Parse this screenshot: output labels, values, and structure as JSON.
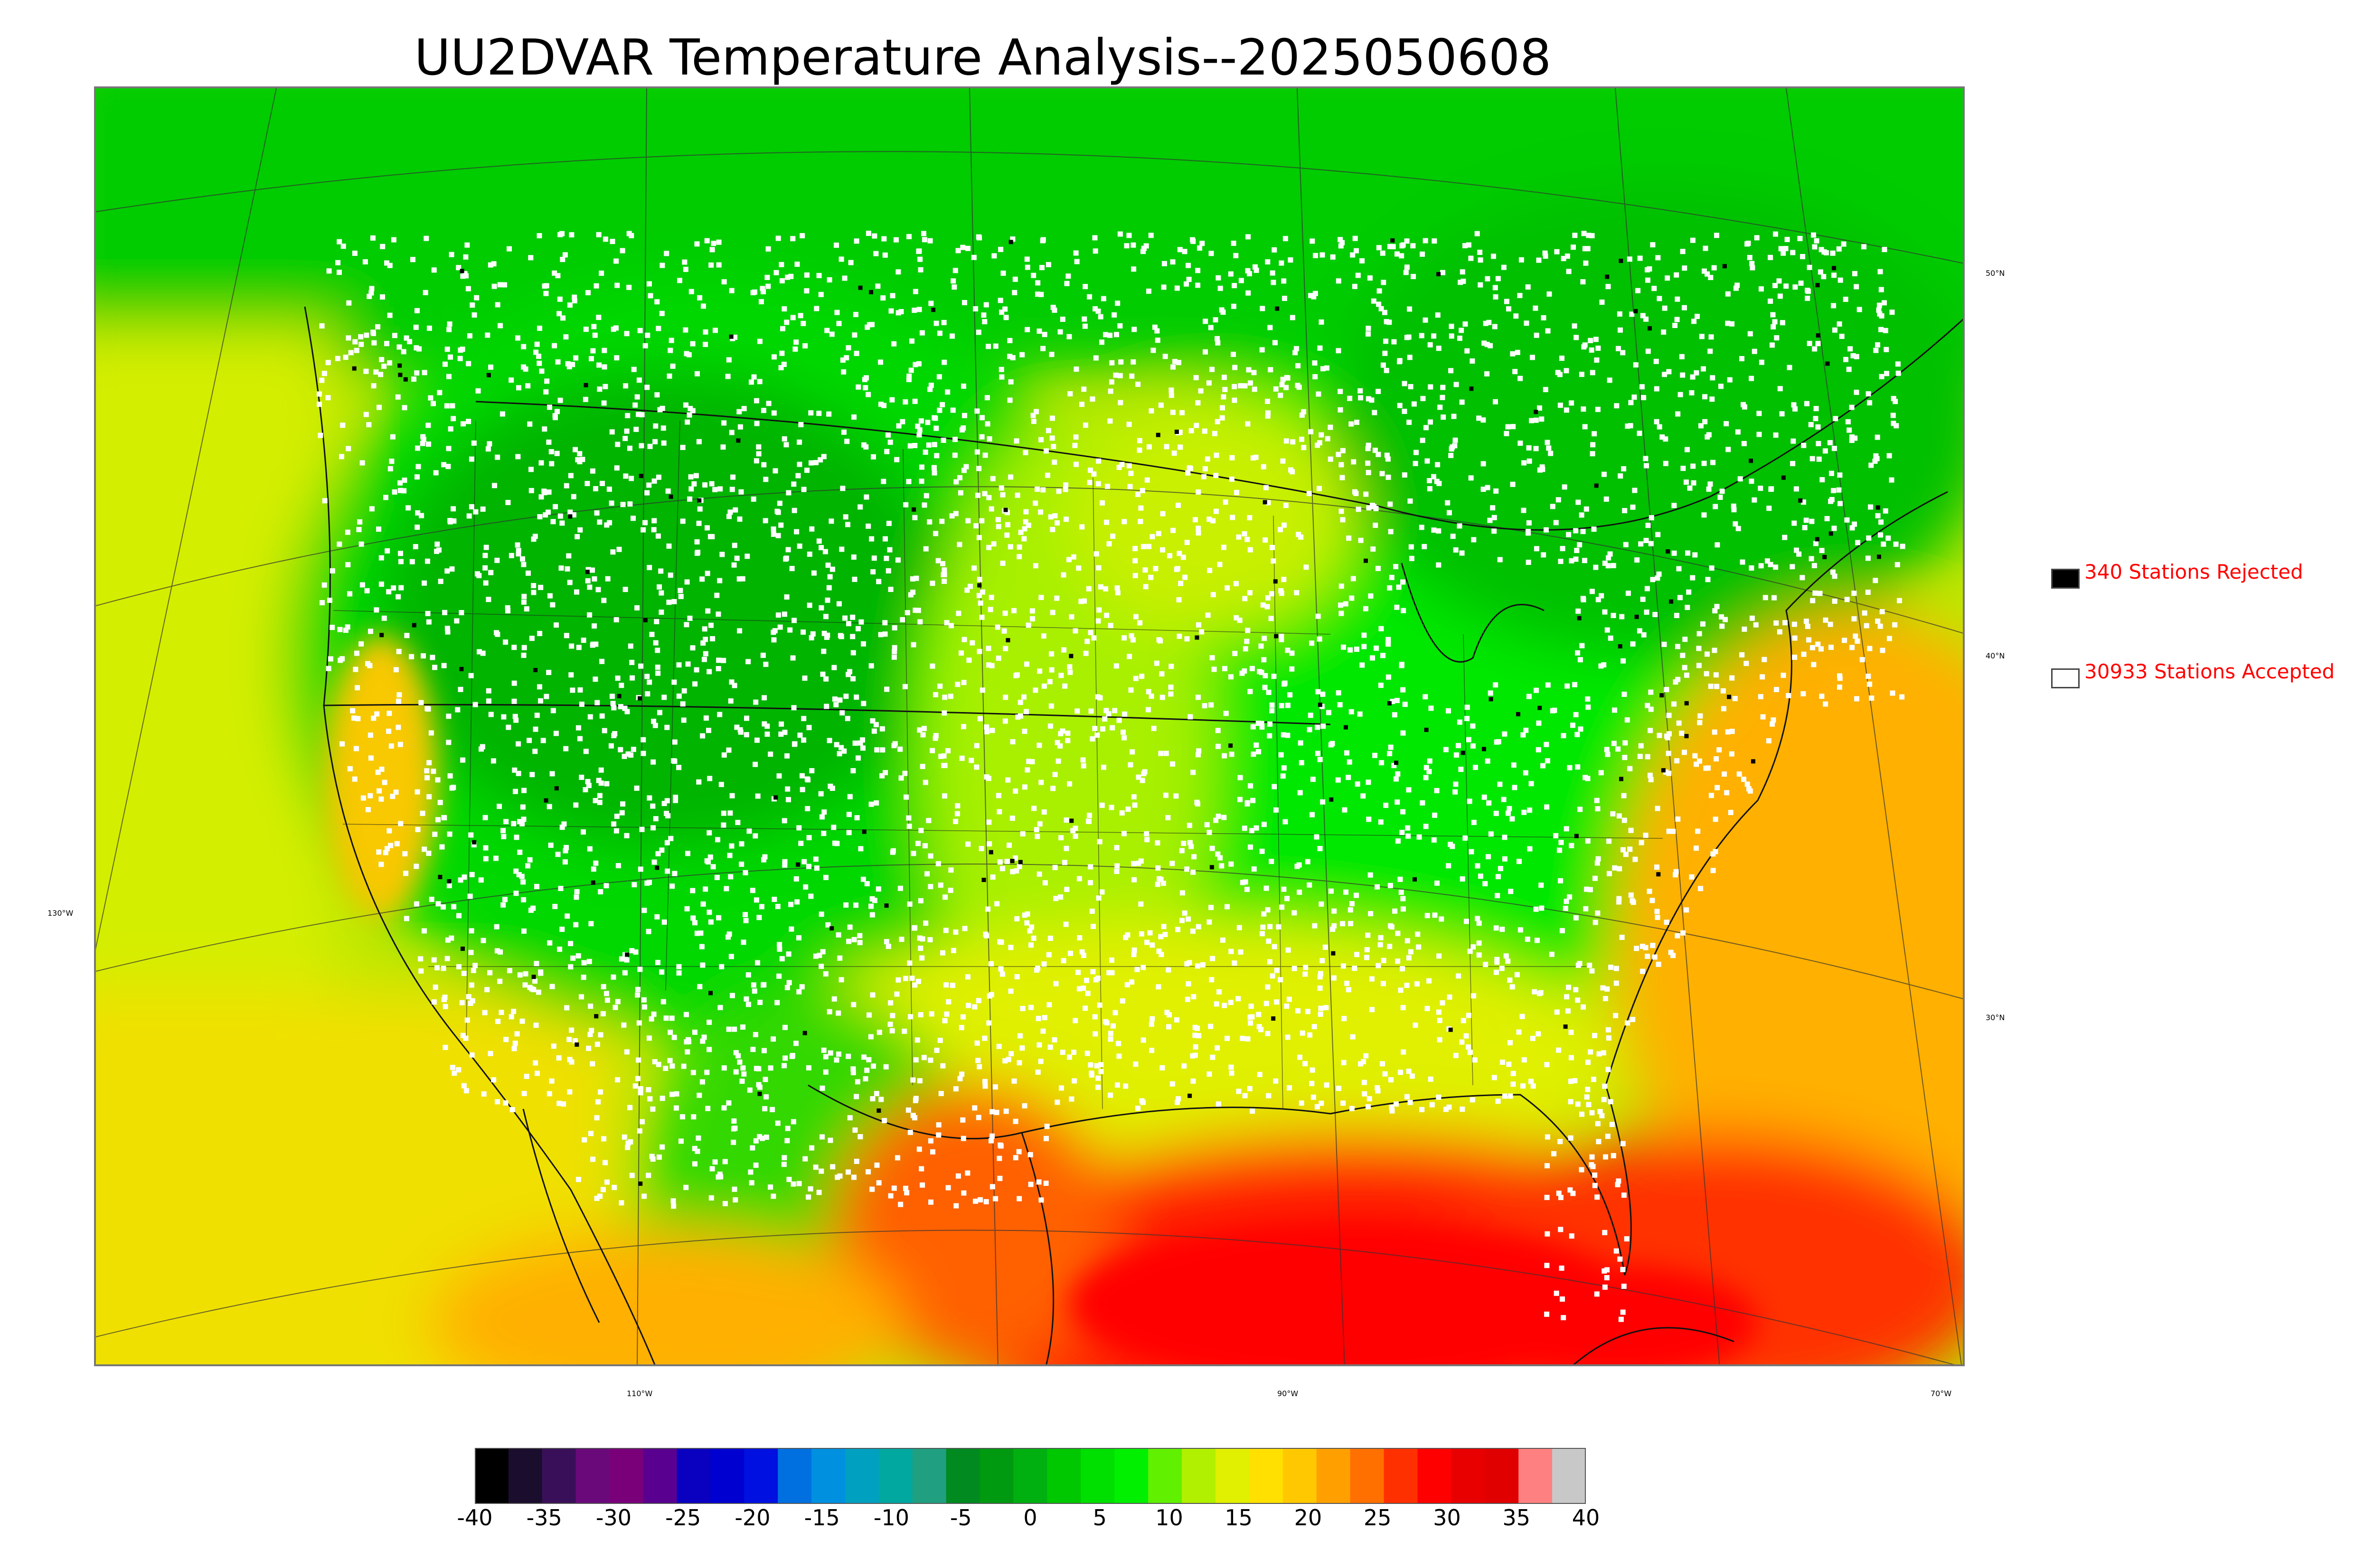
{
  "title": "UU2DVAR Temperature Analysis--2025050608",
  "grid_labels": {
    "lat_50": "50°N",
    "lat_40": "40°N",
    "lat_30": "30°N",
    "lon_130": "130°W",
    "lon_110": "110°W",
    "lon_90": "90°W",
    "lon_70": "70°W"
  },
  "legend": {
    "rejected": {
      "label": "340 Stations Rejected",
      "color": "#000000"
    },
    "accepted": {
      "label": "30933 Stations Accepted",
      "color": "#ffffff"
    }
  },
  "colorbar": {
    "ticks": [
      "-40",
      "-35",
      "-30",
      "-25",
      "-20",
      "-15",
      "-10",
      "-5",
      "0",
      "5",
      "10",
      "15",
      "20",
      "25",
      "30",
      "35",
      "40"
    ],
    "colors": [
      "#000000",
      "#1a0d2e",
      "#3a0f5a",
      "#6a0a7a",
      "#7a007a",
      "#5a0090",
      "#0a00c0",
      "#0000d0",
      "#0010e0",
      "#0070e0",
      "#0090e0",
      "#00a0c0",
      "#00a8a0",
      "#20a080",
      "#008a20",
      "#009a10",
      "#00b010",
      "#00c800",
      "#00e000",
      "#00f000",
      "#60f000",
      "#b0f000",
      "#e0f000",
      "#ffe000",
      "#ffc800",
      "#ffa000",
      "#ff7000",
      "#ff3000",
      "#ff0000",
      "#e80000",
      "#e00000",
      "#ff8080",
      "#c8c8c8"
    ]
  }
}
